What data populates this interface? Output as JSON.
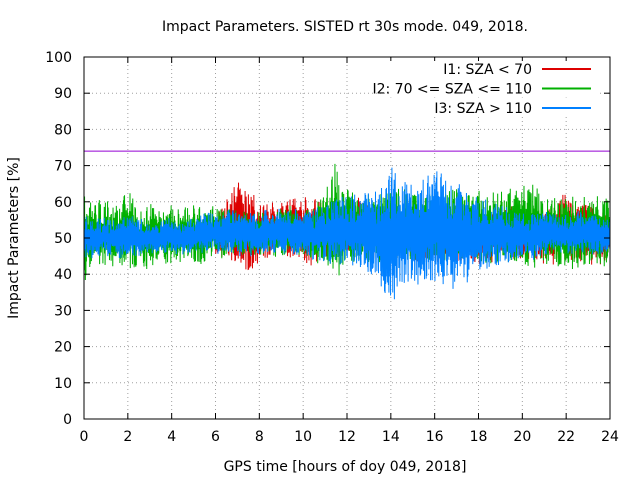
{
  "chart_data": {
    "type": "line",
    "title": "Impact Parameters. SISTED rt 30s mode. 049, 2018.",
    "xlabel": "GPS time [hours of doy 049, 2018]",
    "ylabel": "Impact Parameters [%]",
    "xlim": [
      0,
      24
    ],
    "ylim": [
      0,
      100
    ],
    "xticks": [
      0,
      2,
      4,
      6,
      8,
      10,
      12,
      14,
      16,
      18,
      20,
      22,
      24
    ],
    "yticks": [
      0,
      10,
      20,
      30,
      40,
      50,
      60,
      70,
      80,
      90,
      100
    ],
    "grid": true,
    "legend_position": "top-right",
    "reference_line": {
      "y": 74,
      "color": "#9400d3"
    },
    "series": [
      {
        "name": "I1: SZA < 70",
        "color": "#dd0000",
        "x": [
          6,
          6.5,
          7,
          7.5,
          8,
          8.5,
          9,
          9.5,
          10,
          10.5,
          11,
          11.5,
          12,
          12.5,
          13,
          13.5,
          14,
          14.5,
          15,
          15.5,
          16,
          16.5,
          17,
          17.5,
          18,
          18.5,
          19,
          19.5,
          20,
          20.5,
          21,
          21.5,
          22,
          22.5,
          23,
          23.5,
          24
        ],
        "ymin": [
          44,
          44,
          42,
          41,
          43,
          45,
          45,
          44,
          43,
          43,
          45,
          45,
          45,
          45,
          44,
          43,
          43,
          44,
          44,
          43,
          43,
          43,
          43,
          43,
          43,
          43,
          45,
          44,
          44,
          43,
          43,
          43,
          42,
          43,
          43,
          43,
          43
        ],
        "ymax": [
          57,
          61,
          65,
          63,
          60,
          59,
          60,
          62,
          61,
          61,
          60,
          59,
          61,
          61,
          60,
          59,
          57,
          58,
          58,
          57,
          56,
          56,
          56,
          56,
          57,
          56,
          58,
          59,
          58,
          59,
          59,
          60,
          63,
          60,
          60,
          58,
          57
        ]
      },
      {
        "name": "I2: 70 <= SZA <= 110",
        "color": "#00b000",
        "x": [
          0,
          0.5,
          1,
          1.5,
          2,
          2.5,
          3,
          3.5,
          4,
          4.5,
          5,
          5.5,
          6,
          6.5,
          7,
          7.5,
          8,
          8.5,
          9,
          9.5,
          10,
          10.5,
          11,
          11.5,
          12,
          12.5,
          13,
          13.5,
          14,
          14.5,
          15,
          15.5,
          16,
          16.5,
          17,
          17.5,
          18,
          18.5,
          19,
          19.5,
          20,
          20.5,
          21,
          21.5,
          22,
          22.5,
          23,
          23.5,
          24
        ],
        "ymin": [
          37,
          43,
          42,
          43,
          41,
          42,
          41,
          43,
          42,
          43,
          42,
          43,
          44,
          45,
          45,
          45,
          45,
          45,
          45,
          44,
          45,
          43,
          43,
          38,
          43,
          43,
          42,
          43,
          43,
          44,
          43,
          43,
          43,
          44,
          44,
          43,
          43,
          43,
          42,
          43,
          42,
          42,
          43,
          41,
          42,
          42,
          42,
          42,
          42
        ],
        "ymax": [
          62,
          61,
          60,
          59,
          64,
          58,
          60,
          58,
          59,
          58,
          59,
          59,
          59,
          58,
          58,
          57,
          58,
          57,
          58,
          60,
          57,
          59,
          62,
          72,
          63,
          62,
          62,
          63,
          65,
          64,
          63,
          61,
          63,
          63,
          63,
          62,
          63,
          62,
          63,
          64,
          65,
          65,
          61,
          62,
          61,
          62,
          61,
          61,
          62
        ]
      },
      {
        "name": "I3: SZA > 110",
        "color": "#0080ff",
        "x": [
          0,
          0.5,
          1,
          1.5,
          2,
          2.5,
          3,
          3.5,
          4,
          4.5,
          5,
          5.5,
          6,
          6.5,
          7,
          7.5,
          8,
          8.5,
          9,
          9.5,
          10,
          10.5,
          11,
          11.5,
          12,
          12.5,
          13,
          13.5,
          14,
          14.5,
          15,
          15.5,
          16,
          16.5,
          17,
          17.5,
          18,
          18.5,
          19,
          19.5,
          20,
          20.5,
          21,
          21.5,
          22,
          22.5,
          23,
          23.5,
          24
        ],
        "ymin": [
          44,
          45,
          45,
          44,
          45,
          45,
          46,
          45,
          46,
          45,
          46,
          46,
          46,
          46,
          45,
          45,
          45,
          46,
          46,
          45,
          46,
          44,
          43,
          43,
          43,
          41,
          40,
          37,
          29,
          37,
          38,
          36,
          38,
          36,
          35,
          38,
          40,
          41,
          43,
          43,
          44,
          44,
          45,
          46,
          46,
          46,
          46,
          45,
          45
        ],
        "ymax": [
          56,
          55,
          56,
          55,
          56,
          55,
          55,
          55,
          55,
          55,
          55,
          57,
          57,
          58,
          58,
          58,
          57,
          58,
          58,
          58,
          58,
          58,
          60,
          61,
          61,
          62,
          63,
          63,
          70,
          66,
          65,
          67,
          70,
          67,
          66,
          63,
          61,
          61,
          59,
          58,
          57,
          57,
          57,
          57,
          56,
          57,
          56,
          56,
          55
        ]
      }
    ]
  }
}
